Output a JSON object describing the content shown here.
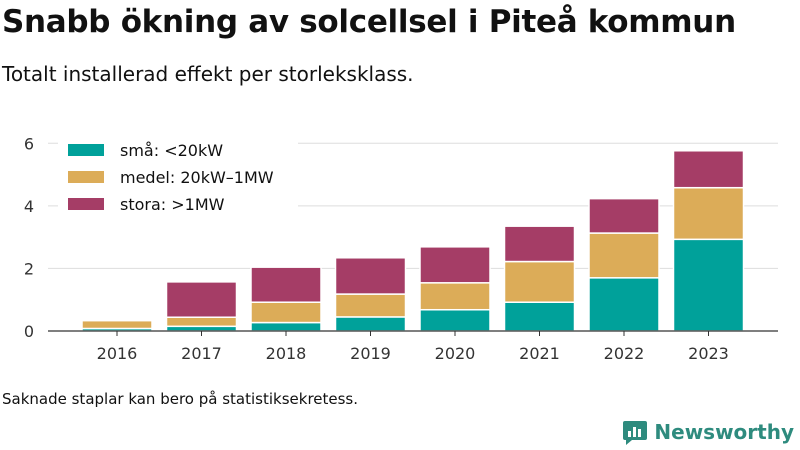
{
  "title": "Snabb ökning av solcellsel i Piteå kommun",
  "subtitle": "Totalt installerad effekt per storleksklass.",
  "footnote": "Saknade staplar kan bero på statistiksekretess.",
  "brand": {
    "name": "Newsworthy",
    "icon": "newsworthy-logo-icon",
    "color": "#2e8b7e"
  },
  "chart_data": {
    "type": "bar",
    "stacked": true,
    "categories": [
      "2016",
      "2017",
      "2018",
      "2019",
      "2020",
      "2021",
      "2022",
      "2023"
    ],
    "series": [
      {
        "name": "små: <20kW",
        "color": "#00a19a",
        "values": [
          0.08,
          0.15,
          0.27,
          0.45,
          0.68,
          0.92,
          1.7,
          2.93
        ]
      },
      {
        "name": "medel: 20kW–1MW",
        "color": "#dcac58",
        "values": [
          0.25,
          0.29,
          0.65,
          0.73,
          0.86,
          1.3,
          1.43,
          1.65
        ]
      },
      {
        "name": "stora: >1MW",
        "color": "#a53d66",
        "values": [
          null,
          1.13,
          1.12,
          1.16,
          1.15,
          1.13,
          1.1,
          1.18
        ]
      }
    ],
    "ylim": [
      0,
      6.2
    ],
    "yticks": [
      0,
      2,
      4,
      6
    ],
    "xlabel": "",
    "ylabel": "",
    "grid": true,
    "legend_position": "top-left"
  }
}
